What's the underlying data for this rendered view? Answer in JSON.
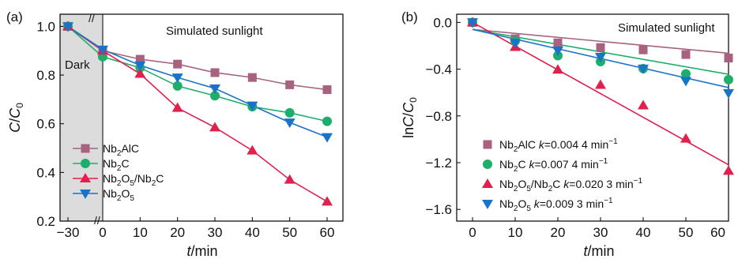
{
  "chart_data": [
    {
      "type": "line",
      "panel_label": "(a)",
      "annotations": {
        "dark_label": "Dark",
        "light_label": "Simulated sunlight"
      },
      "xlabel": "t/min",
      "ylabel": "C/C0",
      "x": [
        -30,
        0,
        10,
        20,
        30,
        40,
        50,
        60
      ],
      "xtick_labels": [
        "−30",
        "0",
        "10",
        "20",
        "30",
        "40",
        "50",
        "60"
      ],
      "ytick_labels": [
        "0.2",
        "0.4",
        "0.6",
        "0.8",
        "1.0"
      ],
      "ylim": [
        0.2,
        1.05
      ],
      "axis_break": "//",
      "legend_position": "bottom-left",
      "series": [
        {
          "name": "Nb2AlC",
          "name_parts": [
            "Nb",
            "2",
            "AlC"
          ],
          "marker": "square",
          "color": "#a8627f",
          "values": [
            1.0,
            0.9,
            0.865,
            0.845,
            0.81,
            0.79,
            0.76,
            0.74
          ]
        },
        {
          "name": "Nb2C",
          "name_parts": [
            "Nb",
            "2",
            "C"
          ],
          "marker": "circle",
          "color": "#1dae6b",
          "values": [
            1.0,
            0.875,
            0.83,
            0.755,
            0.715,
            0.67,
            0.645,
            0.61
          ]
        },
        {
          "name": "Nb2O5/Nb2C",
          "name_parts": [
            "Nb",
            "2",
            "O",
            "5",
            "/Nb",
            "2",
            "C"
          ],
          "marker": "triangle-up",
          "color": "#e0204d",
          "values": [
            1.0,
            0.9,
            0.805,
            0.665,
            0.585,
            0.49,
            0.37,
            0.28
          ]
        },
        {
          "name": "Nb2O5",
          "name_parts": [
            "Nb",
            "2",
            "O",
            "5"
          ],
          "marker": "triangle-down",
          "color": "#1a73c9",
          "values": [
            1.0,
            0.905,
            0.84,
            0.79,
            0.745,
            0.675,
            0.605,
            0.545
          ]
        }
      ]
    },
    {
      "type": "scatter",
      "panel_label": "(b)",
      "annotations": {
        "light_label": "Simulated sunlight"
      },
      "xlabel": "t/min",
      "ylabel": "lnC/C0",
      "x": [
        0,
        10,
        20,
        30,
        40,
        50,
        60
      ],
      "xtick_labels": [
        "0",
        "10",
        "20",
        "30",
        "40",
        "50",
        "60"
      ],
      "ytick_labels": [
        "0.0",
        "−0.4",
        "−0.8",
        "−1.2",
        "−1.6"
      ],
      "ylim": [
        -1.7,
        0.07
      ],
      "legend_position": "bottom-left",
      "series": [
        {
          "name": "Nb2AlC k=0.004 4 min−1",
          "name_parts": [
            "Nb",
            "2",
            "AlC",
            "k",
            "=0.004 4 min",
            "−1"
          ],
          "k": 0.0044,
          "marker": "square",
          "color": "#a8627f",
          "values": [
            0.0,
            -0.14,
            -0.175,
            -0.215,
            -0.235,
            -0.275,
            -0.305
          ]
        },
        {
          "name": "Nb2C k=0.007 4 min−1",
          "name_parts": [
            "Nb",
            "2",
            "C",
            "k",
            "=0.007 4 min",
            "−1"
          ],
          "k": 0.0074,
          "marker": "circle",
          "color": "#1dae6b",
          "values": [
            0.0,
            -0.16,
            -0.285,
            -0.335,
            -0.395,
            -0.44,
            -0.49
          ]
        },
        {
          "name": "Nb2O5/Nb2C k=0.020 3 min−1",
          "name_parts": [
            "Nb",
            "2",
            "O",
            "5",
            "/Nb",
            "2",
            "C",
            "k",
            "=0.020 3 min",
            "−1"
          ],
          "k": 0.0203,
          "marker": "triangle-up",
          "color": "#e0204d",
          "values": [
            0.0,
            -0.21,
            -0.405,
            -0.535,
            -0.71,
            -0.995,
            -1.27
          ]
        },
        {
          "name": "Nb2O5 k=0.009 3 min−1",
          "name_parts": [
            "Nb",
            "2",
            "O",
            "5",
            "k",
            "=0.009 3 min",
            "−1"
          ],
          "k": 0.0093,
          "marker": "triangle-down",
          "color": "#1a73c9",
          "values": [
            0.0,
            -0.175,
            -0.24,
            -0.295,
            -0.395,
            -0.5,
            -0.605
          ]
        }
      ]
    }
  ]
}
